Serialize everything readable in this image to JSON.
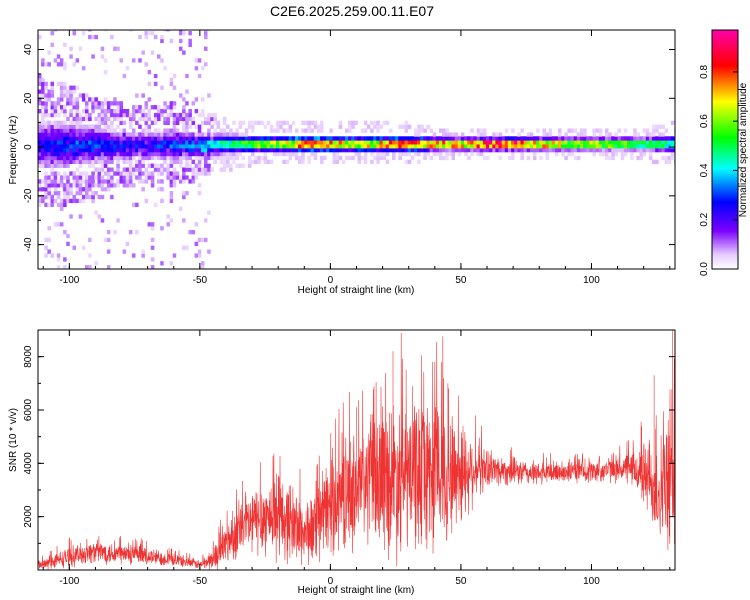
{
  "figure": {
    "title": "C2E6.2025.259.00.11.E07"
  },
  "chart_data": [
    {
      "type": "heatmap",
      "xlabel": "Height of straight line (km)",
      "ylabel": "Frequency (Hz)",
      "xlim": [
        -112,
        132
      ],
      "ylim": [
        -50,
        48
      ],
      "xticks": [
        -100,
        -50,
        0,
        50,
        100
      ],
      "yticks": [
        -40,
        -20,
        0,
        20,
        40
      ],
      "colorbar": {
        "label": "Normalized spectral amplitude",
        "range": [
          0,
          0.97
        ],
        "ticks": [
          "0.0",
          "0.2",
          "0.4",
          "0.6",
          "0.8"
        ],
        "tick_values": [
          0.0,
          0.2,
          0.4,
          0.6,
          0.8
        ],
        "colormap": "rainbow",
        "stops": [
          "#ffffff",
          "#7b00ff",
          "#0000ff",
          "#00ffff",
          "#00ff00",
          "#ffff00",
          "#ff0000",
          "#ff00aa"
        ]
      },
      "band": [
        {
          "x": -110,
          "half_width": 12,
          "peak": 0.25
        },
        {
          "x": -100,
          "half_width": 11,
          "peak": 0.3
        },
        {
          "x": -90,
          "half_width": 9,
          "peak": 0.3
        },
        {
          "x": -80,
          "half_width": 8,
          "peak": 0.25
        },
        {
          "x": -70,
          "half_width": 7,
          "peak": 0.25
        },
        {
          "x": -60,
          "half_width": 8,
          "peak": 0.3
        },
        {
          "x": -50,
          "half_width": 6,
          "peak": 0.35
        },
        {
          "x": -40,
          "half_width": 5,
          "peak": 0.45
        },
        {
          "x": -30,
          "half_width": 4,
          "peak": 0.55
        },
        {
          "x": -20,
          "half_width": 4,
          "peak": 0.6
        },
        {
          "x": -10,
          "half_width": 4,
          "peak": 0.75
        },
        {
          "x": 0,
          "half_width": 4,
          "peak": 0.7
        },
        {
          "x": 10,
          "half_width": 4,
          "peak": 0.65
        },
        {
          "x": 20,
          "half_width": 4,
          "peak": 0.7
        },
        {
          "x": 30,
          "half_width": 4,
          "peak": 0.75
        },
        {
          "x": 40,
          "half_width": 3,
          "peak": 0.7
        },
        {
          "x": 50,
          "half_width": 3,
          "peak": 0.7
        },
        {
          "x": 60,
          "half_width": 3,
          "peak": 0.8
        },
        {
          "x": 70,
          "half_width": 3,
          "peak": 0.85
        },
        {
          "x": 80,
          "half_width": 3,
          "peak": 0.7
        },
        {
          "x": 90,
          "half_width": 3,
          "peak": 0.6
        },
        {
          "x": 100,
          "half_width": 3,
          "peak": 0.6
        },
        {
          "x": 110,
          "half_width": 3,
          "peak": 0.55
        },
        {
          "x": 120,
          "half_width": 3,
          "peak": 0.5
        },
        {
          "x": 130,
          "half_width": 4,
          "peak": 0.45
        }
      ]
    },
    {
      "type": "line",
      "xlabel": "Height of straight line (km)",
      "ylabel": "SNR (10 * v/v)",
      "xlim": [
        -112,
        132
      ],
      "ylim": [
        0,
        9000
      ],
      "xticks": [
        -100,
        -50,
        0,
        50,
        100
      ],
      "yticks": [
        2000,
        4000,
        6000,
        8000
      ],
      "color": "#ee3333",
      "series": [
        {
          "x": [
            -110,
            -100,
            -90,
            -80,
            -70,
            -60,
            -50,
            -45,
            -40,
            -35,
            -30,
            -25,
            -20,
            -15,
            -10,
            -5,
            0,
            5,
            10,
            15,
            20,
            25,
            30,
            35,
            40,
            45,
            50,
            55,
            60,
            70,
            80,
            90,
            100,
            110,
            115,
            120,
            125,
            130
          ],
          "center": [
            200,
            500,
            700,
            600,
            500,
            400,
            200,
            400,
            1000,
            1500,
            1800,
            2000,
            2000,
            1800,
            1400,
            1600,
            2500,
            2800,
            3000,
            3400,
            3500,
            3500,
            3600,
            3700,
            3700,
            3600,
            3700,
            3800,
            3800,
            3700,
            3600,
            3700,
            3700,
            3800,
            3800,
            3600,
            3000,
            3200
          ],
          "spread": [
            250,
            450,
            500,
            500,
            400,
            300,
            200,
            500,
            900,
            1200,
            1500,
            1700,
            1800,
            1800,
            1500,
            1600,
            2200,
            2400,
            2600,
            2800,
            3200,
            3600,
            3400,
            3400,
            3600,
            3000,
            2400,
            1500,
            800,
            600,
            500,
            500,
            500,
            600,
            700,
            1400,
            2200,
            3000
          ],
          "peaks": [
            {
              "x": 24,
              "y": 8200
            },
            {
              "x": 40,
              "y": 7800
            },
            {
              "x": 29,
              "y": 7500
            },
            {
              "x": 45,
              "y": 7000
            },
            {
              "x": 10,
              "y": 6100
            },
            {
              "x": 131,
              "y": 9000
            },
            {
              "x": 124,
              "y": 7300
            }
          ]
        }
      ]
    }
  ]
}
